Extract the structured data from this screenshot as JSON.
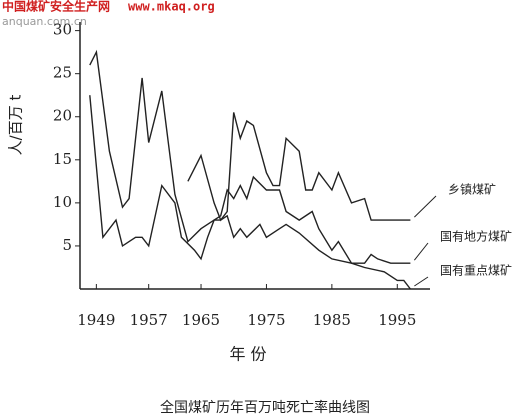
{
  "watermark": {
    "site": "中国煤矿安全生产网",
    "url": "www.mkaq.org",
    "domain": "anquan.com.cn"
  },
  "chart_data": {
    "type": "line",
    "caption": "全国煤矿历年百万吨死亡率曲线图",
    "x_label": "年 份",
    "y_label": "人/百万 t",
    "xlim": [
      1946.5,
      2000
    ],
    "xticks": [
      1949,
      1957,
      1965,
      1975,
      1985,
      1995
    ],
    "ylim": [
      0,
      31
    ],
    "yticks": [
      5,
      10,
      15,
      20,
      25,
      30
    ],
    "series": [
      {
        "name": "乡镇煤矿",
        "color": "#222222",
        "x": [
          1963,
          1965,
          1967,
          1968,
          1969,
          1970,
          1971,
          1972,
          1973,
          1975,
          1976,
          1977,
          1978,
          1980,
          1981,
          1982,
          1983,
          1985,
          1986,
          1988,
          1990,
          1991,
          1994,
          1997
        ],
        "values": [
          12.5,
          15.5,
          10,
          8,
          9,
          20.5,
          17.5,
          19.5,
          19,
          13.5,
          12,
          12,
          17.5,
          16,
          11.5,
          11.5,
          13.5,
          11.5,
          13.5,
          10,
          10.5,
          8,
          8,
          8
        ]
      },
      {
        "name": "国有地方煤矿",
        "color": "#222222",
        "x": [
          1948,
          1949,
          1951,
          1953,
          1954,
          1956,
          1957,
          1959,
          1960,
          1961,
          1963,
          1965,
          1967,
          1968,
          1969,
          1970,
          1971,
          1972,
          1973,
          1975,
          1977,
          1978,
          1980,
          1982,
          1983,
          1985,
          1986,
          1988,
          1990,
          1991,
          1992,
          1994,
          1997
        ],
        "values": [
          26,
          27.5,
          16,
          9.5,
          10.5,
          24.5,
          17,
          23,
          17,
          11,
          5.5,
          7,
          8,
          8.5,
          11.5,
          10.5,
          12,
          10.5,
          13,
          11.5,
          11.5,
          9,
          8,
          9,
          7,
          4.5,
          5.5,
          3,
          3,
          4,
          3.5,
          3,
          3
        ]
      },
      {
        "name": "国有重点煤矿",
        "color": "#222222",
        "x": [
          1948,
          1950,
          1952,
          1953,
          1955,
          1956,
          1957,
          1959,
          1961,
          1962,
          1964,
          1965,
          1966,
          1967,
          1968,
          1969,
          1970,
          1971,
          1972,
          1974,
          1975,
          1977,
          1978,
          1980,
          1983,
          1985,
          1988,
          1990,
          1993,
          1995,
          1996,
          1997
        ],
        "values": [
          22.5,
          6,
          8,
          5,
          6,
          6,
          5,
          12,
          10,
          6,
          4.5,
          3.5,
          6,
          8,
          8,
          8.5,
          6,
          7,
          6,
          7.5,
          6,
          7,
          7.5,
          6.5,
          4.5,
          3.5,
          3,
          2.5,
          2,
          1,
          1,
          0
        ]
      }
    ]
  }
}
